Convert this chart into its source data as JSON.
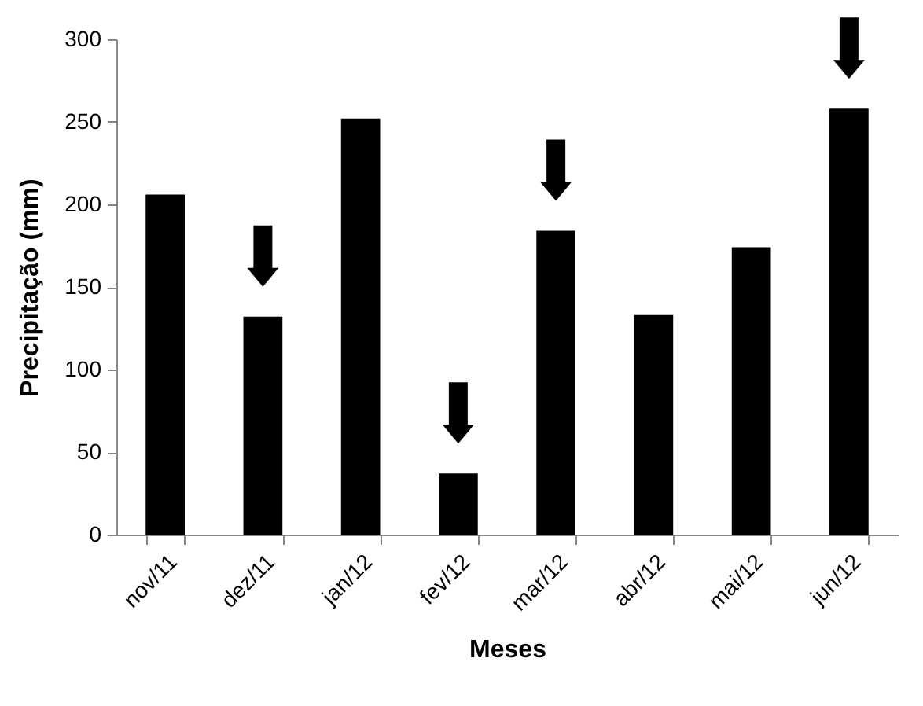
{
  "chart_data": {
    "type": "bar",
    "xlabel": "Meses",
    "ylabel": "Precipitação (mm)",
    "categories": [
      "nov/11",
      "dez/11",
      "jan/12",
      "fev/12",
      "mar/12",
      "abr/12",
      "mai/12",
      "jun/12"
    ],
    "values": [
      206,
      132,
      252,
      37,
      184,
      133,
      174,
      258
    ],
    "color": "#000000",
    "ylim": [
      0,
      300
    ],
    "yticks": [
      0,
      50,
      100,
      150,
      200,
      250,
      300
    ],
    "grid": false
  }
}
